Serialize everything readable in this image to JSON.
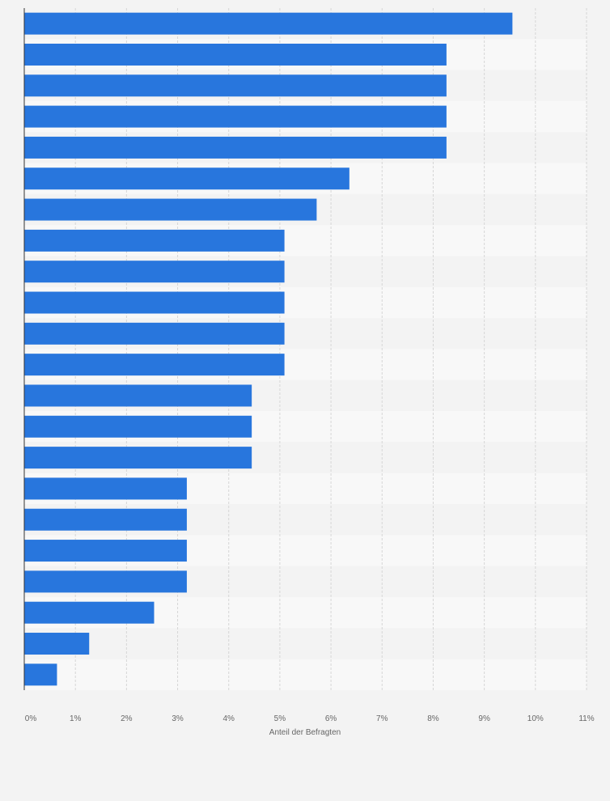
{
  "chart_data": {
    "type": "bar",
    "orientation": "horizontal",
    "categories": [
      "",
      "",
      "",
      "",
      "",
      "",
      "",
      "",
      "",
      "",
      "",
      "",
      "",
      "",
      "",
      "",
      "",
      "",
      "",
      "",
      "",
      ""
    ],
    "values": [
      9.55,
      8.26,
      8.26,
      8.26,
      8.26,
      6.36,
      5.72,
      5.09,
      5.09,
      5.09,
      5.09,
      5.09,
      4.45,
      4.45,
      4.45,
      3.18,
      3.18,
      3.18,
      3.18,
      2.54,
      1.27,
      0.64
    ],
    "title": "",
    "xlabel": "Anteil der Befragten",
    "ylabel": "",
    "xlim": [
      0,
      11
    ],
    "x_ticks": [
      "0%",
      "1%",
      "2%",
      "3%",
      "4%",
      "5%",
      "6%",
      "7%",
      "8%",
      "9%",
      "10%",
      "11%"
    ],
    "grid": true,
    "bar_color": "#2876dd",
    "band_colors": [
      "#f3f3f3",
      "#f8f8f8"
    ],
    "background_color": "#f3f3f3"
  }
}
